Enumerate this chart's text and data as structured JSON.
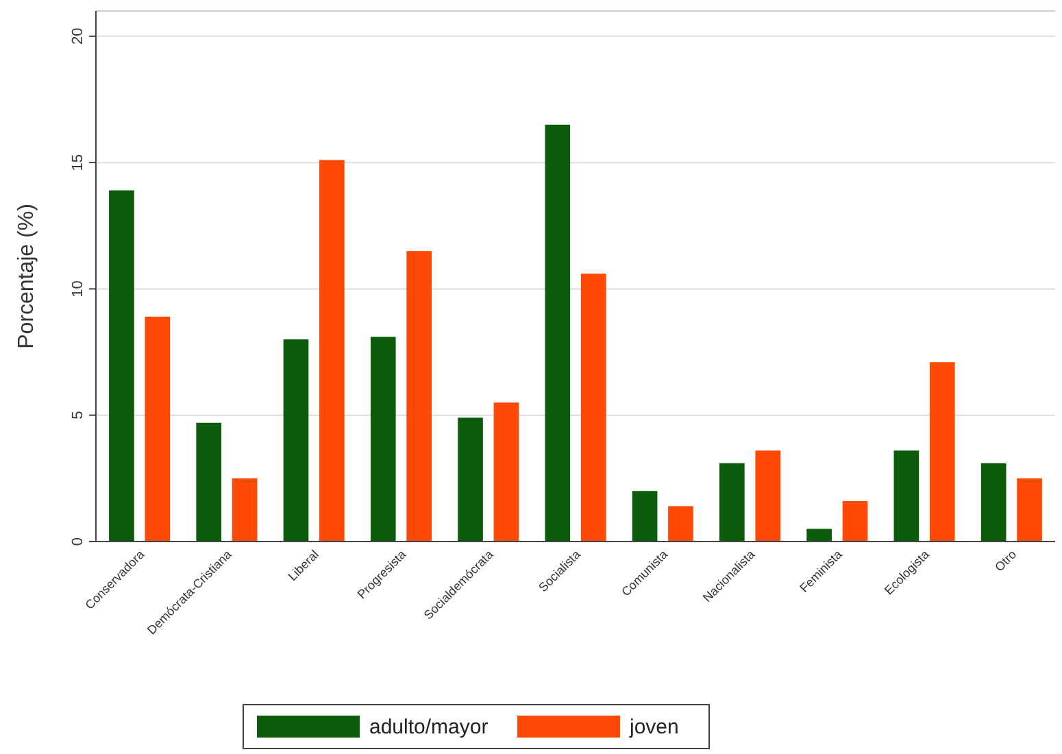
{
  "chart_data": {
    "type": "bar",
    "ylabel": "Porcentaje (%)",
    "categories": [
      "Conservadora",
      "Demócrata-Cristiana",
      "Liberal",
      "Progresista",
      "Socialdemócrata",
      "Socialista",
      "Comunista",
      "Nacionalista",
      "Feminista",
      "Ecologista",
      "Otro"
    ],
    "series": [
      {
        "name": "adulto/mayor",
        "color": "#0b5c0b",
        "values": [
          13.9,
          4.7,
          8.0,
          8.1,
          4.9,
          16.5,
          2.0,
          3.1,
          0.5,
          3.6,
          3.1
        ]
      },
      {
        "name": "joven",
        "color": "#ff4a05",
        "values": [
          8.9,
          2.5,
          15.1,
          11.5,
          5.5,
          10.6,
          1.4,
          3.6,
          1.6,
          7.1,
          2.5
        ]
      }
    ],
    "ylim": [
      0,
      21
    ],
    "yticks": [
      0,
      5,
      10,
      15,
      20
    ],
    "grid": "y",
    "legend": "bottom"
  }
}
